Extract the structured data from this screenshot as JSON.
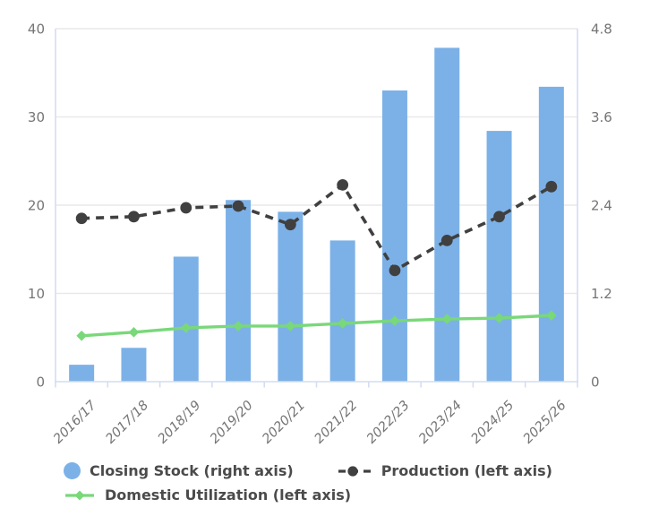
{
  "chart_data": {
    "type": "combo-bar-line",
    "title": "",
    "categories": [
      "2016/17",
      "2017/18",
      "2018/19",
      "2019/20",
      "2020/21",
      "2021/22",
      "2022/23",
      "2023/24",
      "2024/25",
      "2025/26"
    ],
    "series": [
      {
        "name": "Closing Stock (right axis)",
        "type": "bar",
        "axis": "right",
        "color": "#7CB1E7",
        "values": [
          0.23,
          0.46,
          1.7,
          2.47,
          2.31,
          1.92,
          3.96,
          4.54,
          3.41,
          4.01
        ]
      },
      {
        "name": "Production (left axis)",
        "type": "line",
        "line_style": "dashed",
        "marker": "circle",
        "axis": "left",
        "color": "#404040",
        "values": [
          18.5,
          18.7,
          19.7,
          19.9,
          17.8,
          22.3,
          12.6,
          16.0,
          18.7,
          22.1
        ]
      },
      {
        "name": "Domestic Utilization (left axis)",
        "type": "line",
        "line_style": "solid",
        "marker": "diamond",
        "axis": "left",
        "color": "#79D879",
        "values": [
          5.2,
          5.6,
          6.1,
          6.3,
          6.3,
          6.6,
          6.9,
          7.1,
          7.2,
          7.5
        ]
      }
    ],
    "left_axis": {
      "min": 0,
      "max": 40,
      "ticks": [
        0,
        10,
        20,
        30,
        40
      ]
    },
    "right_axis": {
      "min": 0,
      "max": 4.8,
      "ticks": [
        0,
        1.2,
        2.4,
        3.6,
        4.8
      ]
    },
    "grid": true,
    "legend_position": "bottom"
  },
  "legend": {
    "items": [
      {
        "label": "Closing Stock (right axis)"
      },
      {
        "label": "Production (left axis)"
      },
      {
        "label": "Domestic Utilization (left axis)"
      }
    ]
  },
  "colors": {
    "background": "#FFFFFF",
    "grid": "#E9E9E9",
    "axis_border": "#D4DDF1",
    "axis_text": "#757575",
    "legend_text": "#4B4B4B",
    "bar_blue": "#7CB1E7",
    "production_dark": "#404040",
    "utilization_green": "#79D879"
  }
}
